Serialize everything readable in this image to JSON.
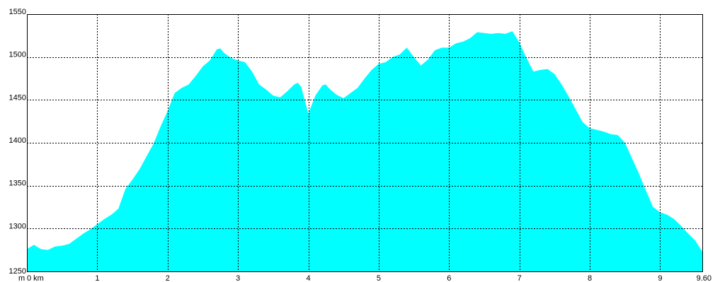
{
  "chart_data": {
    "type": "area",
    "title": "",
    "xlabel": "",
    "ylabel": "",
    "x_unit_label": "km",
    "y_unit_label": "m",
    "xlim": [
      0,
      9.6
    ],
    "ylim": [
      1250,
      1550
    ],
    "grid": true,
    "legend": "none",
    "fill_color": "#00ffff",
    "x_ticks": [
      {
        "value": 0,
        "label": "0 km"
      },
      {
        "value": 1,
        "label": "1"
      },
      {
        "value": 2,
        "label": "2"
      },
      {
        "value": 3,
        "label": "3"
      },
      {
        "value": 4,
        "label": "4"
      },
      {
        "value": 5,
        "label": "5"
      },
      {
        "value": 6,
        "label": "6"
      },
      {
        "value": 7,
        "label": "7"
      },
      {
        "value": 8,
        "label": "8"
      },
      {
        "value": 9,
        "label": "9"
      },
      {
        "value": 9.6,
        "label": "9.60"
      }
    ],
    "y_ticks": [
      {
        "value": 1250,
        "label": "1250"
      },
      {
        "value": 1300,
        "label": "1300"
      },
      {
        "value": 1350,
        "label": "1350"
      },
      {
        "value": 1400,
        "label": "1400"
      },
      {
        "value": 1450,
        "label": "1450"
      },
      {
        "value": 1500,
        "label": "1500"
      },
      {
        "value": 1550,
        "label": "1550"
      }
    ],
    "series": [
      {
        "x": [
          0,
          0.1,
          0.2,
          0.3,
          0.4,
          0.5,
          0.6,
          0.7,
          0.8,
          0.9,
          1.0,
          1.1,
          1.2,
          1.3,
          1.4,
          1.5,
          1.6,
          1.7,
          1.8,
          1.9,
          2.0,
          2.1,
          2.2,
          2.3,
          2.4,
          2.5,
          2.6,
          2.7,
          2.75,
          2.8,
          2.9,
          3.0,
          3.1,
          3.2,
          3.3,
          3.4,
          3.5,
          3.6,
          3.7,
          3.8,
          3.85,
          3.9,
          4.0,
          4.1,
          4.2,
          4.25,
          4.3,
          4.4,
          4.5,
          4.6,
          4.7,
          4.8,
          4.9,
          5.0,
          5.1,
          5.2,
          5.3,
          5.4,
          5.5,
          5.6,
          5.7,
          5.8,
          5.9,
          6.0,
          6.1,
          6.2,
          6.3,
          6.4,
          6.5,
          6.6,
          6.7,
          6.8,
          6.9,
          7.0,
          7.1,
          7.2,
          7.3,
          7.4,
          7.5,
          7.6,
          7.7,
          7.8,
          7.9,
          8.0,
          8.1,
          8.2,
          8.3,
          8.4,
          8.5,
          8.6,
          8.7,
          8.8,
          8.9,
          9.0,
          9.1,
          9.2,
          9.3,
          9.4,
          9.5,
          9.6
        ],
        "y": [
          1276,
          1281,
          1276,
          1275,
          1279,
          1280,
          1282,
          1288,
          1294,
          1299,
          1305,
          1311,
          1316,
          1323,
          1346,
          1357,
          1369,
          1384,
          1399,
          1419,
          1437,
          1458,
          1464,
          1468,
          1478,
          1489,
          1496,
          1509,
          1510,
          1505,
          1499,
          1496,
          1494,
          1483,
          1468,
          1462,
          1455,
          1453,
          1460,
          1468,
          1470,
          1465,
          1434,
          1455,
          1467,
          1468,
          1463,
          1456,
          1452,
          1458,
          1464,
          1475,
          1485,
          1492,
          1494,
          1500,
          1503,
          1511,
          1500,
          1490,
          1497,
          1508,
          1511,
          1511,
          1516,
          1518,
          1522,
          1529,
          1528,
          1527,
          1528,
          1527,
          1530,
          1517,
          1499,
          1483,
          1485,
          1486,
          1480,
          1468,
          1454,
          1439,
          1424,
          1417,
          1415,
          1413,
          1410,
          1409,
          1400,
          1382,
          1364,
          1344,
          1325,
          1319,
          1316,
          1311,
          1303,
          1294,
          1286,
          1273
        ]
      }
    ]
  }
}
